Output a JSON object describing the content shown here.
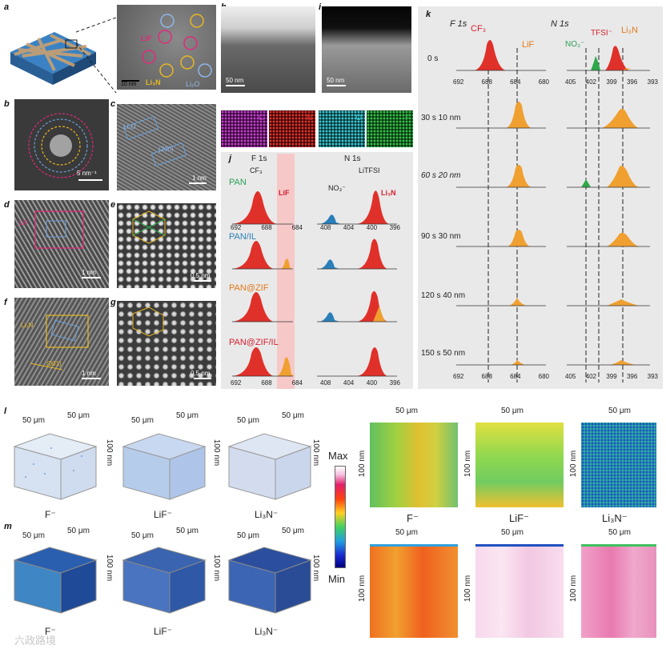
{
  "panels": {
    "a": {
      "label": "a",
      "tem_labels": {
        "lif": "LiF",
        "li3n": "Li₃N",
        "li2o": "Li₂O"
      },
      "scalebar": "10 nm"
    },
    "b": {
      "label": "b",
      "scalebar": "5 nm⁻¹"
    },
    "c": {
      "label": "c",
      "phase": "Li₂O",
      "plane": "(200)",
      "scalebar": "1 nm"
    },
    "d": {
      "label": "d",
      "phase": "LiF",
      "scalebar": "1 nm"
    },
    "e": {
      "label": "e",
      "scalebar": "0.5 nm"
    },
    "f": {
      "label": "f",
      "phase": "Li₃N",
      "plane": "(001)",
      "scalebar": "1 nm"
    },
    "g": {
      "label": "g",
      "scalebar": "0.5 nm"
    },
    "h": {
      "label": "h",
      "scalebar": "50 nm"
    },
    "i": {
      "label": "i",
      "scalebar": "50 nm"
    },
    "eds": {
      "elements": [
        "C",
        "N",
        "O",
        "F"
      ],
      "colors": [
        "#c23ccc",
        "#e0302a",
        "#3ec7d0",
        "#36c04a"
      ]
    },
    "j": {
      "label": "j",
      "col_titles": [
        "F 1s",
        "N 1s"
      ],
      "peak_labels": {
        "cf3": "CF₃",
        "lif": "LiF",
        "no3": "NO₃⁻",
        "litfsi": "LiTFSI",
        "li3n": "Li₃N"
      },
      "samples": [
        {
          "name": "PAN",
          "color": "#2aa05a"
        },
        {
          "name": "PAN/IL",
          "color": "#2a7fb8"
        },
        {
          "name": "PAN@ZIF",
          "color": "#e07a1a"
        },
        {
          "name": "PAN@ZIF/IL",
          "color": "#d62030"
        }
      ],
      "f_ticks": [
        "692",
        "688",
        "684"
      ],
      "n_ticks": [
        "408",
        "404",
        "400",
        "396"
      ]
    },
    "k": {
      "label": "k",
      "col_titles": [
        "F 1s",
        "N 1s"
      ],
      "peak_labels": {
        "cf3": "CF₃",
        "lif": "LiF",
        "no3": "NO₃⁻",
        "tfsi": "TFSI⁻",
        "li3n": "Li₃N"
      },
      "rows": [
        "0 s",
        "30 s 10 nm",
        "60 s 20 nm",
        "90 s 30 nm",
        "120 s 40 nm",
        "150 s 50 nm"
      ],
      "f_ticks": [
        "692",
        "688",
        "684",
        "680"
      ],
      "n_ticks": [
        "405",
        "402",
        "399",
        "396",
        "393"
      ]
    },
    "l": {
      "label": "l",
      "cubes": [
        "F⁻",
        "LiF⁻",
        "Li₃N⁻"
      ],
      "dim_xy": "50 μm",
      "dim_z": "100 nm"
    },
    "m": {
      "label": "m",
      "cubes": [
        "F⁻",
        "LiF⁻",
        "Li₃N⁻"
      ],
      "dim_xy": "50 μm",
      "dim_z": "100 nm"
    },
    "maps": {
      "top": [
        "F⁻",
        "LiF⁻",
        "Li₃N⁻"
      ],
      "dim_x": "50 μm",
      "dim_y": "100 nm",
      "colorbar_max": "Max",
      "colorbar_min": "Min"
    }
  },
  "watermark": "六政路境"
}
